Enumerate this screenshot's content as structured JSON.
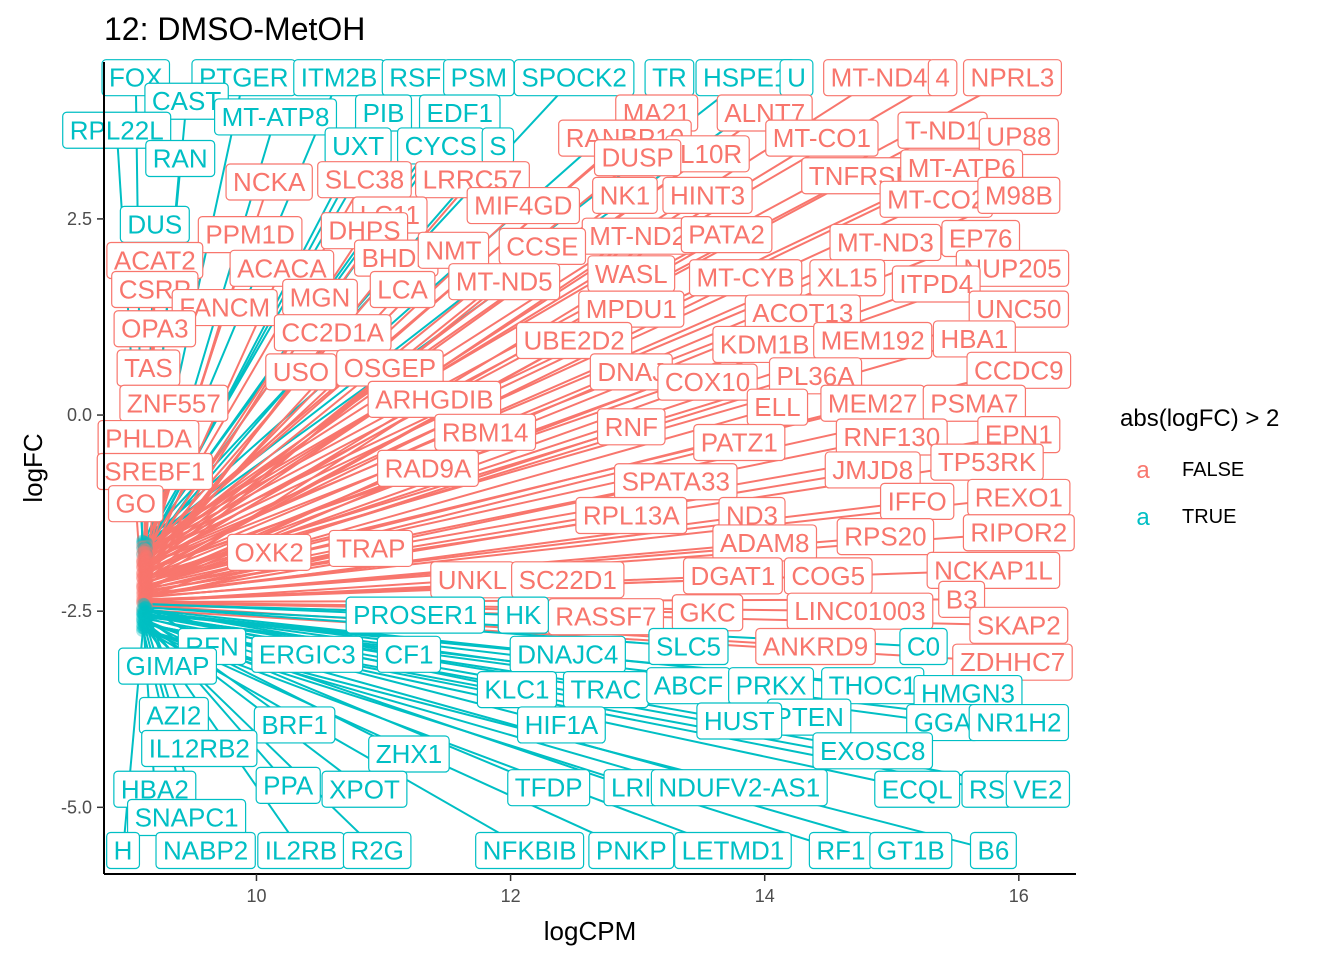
{
  "chart_data": {
    "type": "scatter",
    "title": "12: DMSO-MetOH",
    "xlabel": "logCPM",
    "ylabel": "logFC",
    "xlim": [
      8.8,
      16.45
    ],
    "ylim": [
      -5.85,
      4.5
    ],
    "xticks": [
      10,
      12,
      14,
      16
    ],
    "yticks": [
      -5.0,
      -2.5,
      0.0,
      2.5
    ],
    "ytick_labels": [
      "-5.0",
      "-2.5",
      "0.0",
      "2.5"
    ],
    "grid": false,
    "legend": {
      "title": "abs(logFC) > 2",
      "placement": "right",
      "entries": [
        {
          "key": "FALSE",
          "label": "FALSE",
          "glyph": "a",
          "color": "#F8766D"
        },
        {
          "key": "TRUE",
          "label": "TRUE",
          "glyph": "a",
          "color": "#00BFC4"
        }
      ]
    },
    "colors": {
      "FALSE": "#F8766D",
      "TRUE": "#00BFC4"
    },
    "anchor_cluster": {
      "x": 9.1,
      "y_min": -2.75,
      "y_max": -1.6
    },
    "labels": [
      {
        "t": "FOX",
        "x": 9.05,
        "y": 4.3,
        "c": "TRUE"
      },
      {
        "t": "PTGER",
        "x": 9.9,
        "y": 4.3,
        "c": "TRUE"
      },
      {
        "t": "ITM2B",
        "x": 10.65,
        "y": 4.3,
        "c": "TRUE"
      },
      {
        "t": "RSF",
        "x": 11.25,
        "y": 4.3,
        "c": "TRUE"
      },
      {
        "t": "PSM",
        "x": 11.75,
        "y": 4.3,
        "c": "TRUE"
      },
      {
        "t": "SPOCK2",
        "x": 12.5,
        "y": 4.3,
        "c": "TRUE"
      },
      {
        "t": "TR",
        "x": 13.25,
        "y": 4.3,
        "c": "TRUE"
      },
      {
        "t": "HSPE1",
        "x": 13.85,
        "y": 4.3,
        "c": "TRUE"
      },
      {
        "t": "U",
        "x": 14.25,
        "y": 4.3,
        "c": "TRUE"
      },
      {
        "t": "MT-ND4",
        "x": 14.9,
        "y": 4.3,
        "c": "FALSE"
      },
      {
        "t": "4",
        "x": 15.4,
        "y": 4.3,
        "c": "FALSE"
      },
      {
        "t": "NPRL3",
        "x": 15.95,
        "y": 4.3,
        "c": "FALSE"
      },
      {
        "t": "CAST",
        "x": 9.45,
        "y": 4.0,
        "c": "TRUE"
      },
      {
        "t": "MT-ATP8",
        "x": 10.15,
        "y": 3.8,
        "c": "TRUE"
      },
      {
        "t": "PIB",
        "x": 11.0,
        "y": 3.85,
        "c": "TRUE"
      },
      {
        "t": "EDF1",
        "x": 11.6,
        "y": 3.85,
        "c": "TRUE"
      },
      {
        "t": "RPL22L",
        "x": 8.9,
        "y": 3.63,
        "c": "TRUE"
      },
      {
        "t": "RAN",
        "x": 9.4,
        "y": 3.27,
        "c": "TRUE"
      },
      {
        "t": "UXT",
        "x": 10.8,
        "y": 3.43,
        "c": "TRUE"
      },
      {
        "t": "CYCS",
        "x": 11.45,
        "y": 3.43,
        "c": "TRUE"
      },
      {
        "t": "S",
        "x": 11.9,
        "y": 3.43,
        "c": "TRUE"
      },
      {
        "t": "DUS",
        "x": 9.2,
        "y": 2.43,
        "c": "TRUE"
      },
      {
        "t": "MA21",
        "x": 13.15,
        "y": 3.85,
        "c": "FALSE"
      },
      {
        "t": "ALNT7",
        "x": 14.0,
        "y": 3.85,
        "c": "FALSE"
      },
      {
        "t": "RANBP10",
        "x": 12.9,
        "y": 3.53,
        "c": "FALSE"
      },
      {
        "t": "MT-CO1",
        "x": 14.45,
        "y": 3.53,
        "c": "FALSE"
      },
      {
        "t": "T-ND1",
        "x": 15.4,
        "y": 3.63,
        "c": "FALSE"
      },
      {
        "t": "UP88",
        "x": 16.0,
        "y": 3.55,
        "c": "FALSE"
      },
      {
        "t": "IL10R",
        "x": 13.55,
        "y": 3.33,
        "c": "FALSE"
      },
      {
        "t": "DUSP",
        "x": 13.0,
        "y": 3.28,
        "c": "FALSE"
      },
      {
        "t": "NCKA",
        "x": 10.1,
        "y": 2.97,
        "c": "FALSE"
      },
      {
        "t": "SLC38",
        "x": 10.85,
        "y": 3.0,
        "c": "FALSE"
      },
      {
        "t": "LRRC57",
        "x": 11.7,
        "y": 3.0,
        "c": "FALSE"
      },
      {
        "t": "TNFRSF",
        "x": 14.75,
        "y": 3.05,
        "c": "FALSE"
      },
      {
        "t": "MT-ATP6",
        "x": 15.55,
        "y": 3.15,
        "c": "FALSE"
      },
      {
        "t": "MIF4GD",
        "x": 12.1,
        "y": 2.67,
        "c": "FALSE"
      },
      {
        "t": "NK1",
        "x": 12.9,
        "y": 2.8,
        "c": "FALSE"
      },
      {
        "t": "HINT3",
        "x": 13.55,
        "y": 2.8,
        "c": "FALSE"
      },
      {
        "t": "MT-CO2",
        "x": 15.35,
        "y": 2.75,
        "c": "FALSE"
      },
      {
        "t": "M98B",
        "x": 16.0,
        "y": 2.8,
        "c": "FALSE"
      },
      {
        "t": "LC11",
        "x": 11.05,
        "y": 2.55,
        "c": "FALSE"
      },
      {
        "t": "PPM1D",
        "x": 9.95,
        "y": 2.3,
        "c": "FALSE"
      },
      {
        "t": "DHPS",
        "x": 10.85,
        "y": 2.35,
        "c": "FALSE"
      },
      {
        "t": "MT-ND2",
        "x": 13.0,
        "y": 2.28,
        "c": "FALSE"
      },
      {
        "t": "PATA2",
        "x": 13.7,
        "y": 2.3,
        "c": "FALSE"
      },
      {
        "t": "MT-ND3",
        "x": 14.95,
        "y": 2.2,
        "c": "FALSE"
      },
      {
        "t": "EP76",
        "x": 15.7,
        "y": 2.25,
        "c": "FALSE"
      },
      {
        "t": "ACAT2",
        "x": 9.2,
        "y": 1.97,
        "c": "FALSE"
      },
      {
        "t": "ACACA",
        "x": 10.2,
        "y": 1.87,
        "c": "FALSE"
      },
      {
        "t": "BHD2",
        "x": 11.1,
        "y": 2.0,
        "c": "FALSE"
      },
      {
        "t": "NMT",
        "x": 11.55,
        "y": 2.1,
        "c": "FALSE"
      },
      {
        "t": "CCSE",
        "x": 12.25,
        "y": 2.15,
        "c": "FALSE"
      },
      {
        "t": "NUP205",
        "x": 15.95,
        "y": 1.87,
        "c": "FALSE"
      },
      {
        "t": "CSRP",
        "x": 9.2,
        "y": 1.6,
        "c": "FALSE"
      },
      {
        "t": "MGN",
        "x": 10.5,
        "y": 1.5,
        "c": "FALSE"
      },
      {
        "t": "LCA",
        "x": 11.15,
        "y": 1.6,
        "c": "FALSE"
      },
      {
        "t": "MT-ND5",
        "x": 11.95,
        "y": 1.7,
        "c": "FALSE"
      },
      {
        "t": "WASL",
        "x": 12.95,
        "y": 1.8,
        "c": "FALSE"
      },
      {
        "t": "MT-CYB",
        "x": 13.85,
        "y": 1.75,
        "c": "FALSE"
      },
      {
        "t": "XL15",
        "x": 14.65,
        "y": 1.75,
        "c": "FALSE"
      },
      {
        "t": "ITPD4",
        "x": 15.35,
        "y": 1.67,
        "c": "FALSE"
      },
      {
        "t": "FANCM",
        "x": 9.75,
        "y": 1.37,
        "c": "FALSE"
      },
      {
        "t": "MPDU1",
        "x": 12.95,
        "y": 1.35,
        "c": "FALSE"
      },
      {
        "t": "ACOT13",
        "x": 14.3,
        "y": 1.3,
        "c": "FALSE"
      },
      {
        "t": "UNC50",
        "x": 16.0,
        "y": 1.35,
        "c": "FALSE"
      },
      {
        "t": "OPA3",
        "x": 9.2,
        "y": 1.1,
        "c": "FALSE"
      },
      {
        "t": "CC2D1A",
        "x": 10.6,
        "y": 1.05,
        "c": "FALSE"
      },
      {
        "t": "UBE2D2",
        "x": 12.5,
        "y": 0.95,
        "c": "FALSE"
      },
      {
        "t": "KDM1B",
        "x": 14.0,
        "y": 0.9,
        "c": "FALSE"
      },
      {
        "t": "MEM192",
        "x": 14.85,
        "y": 0.95,
        "c": "FALSE"
      },
      {
        "t": "HBA1",
        "x": 15.65,
        "y": 0.97,
        "c": "FALSE"
      },
      {
        "t": "TAS",
        "x": 9.15,
        "y": 0.6,
        "c": "FALSE"
      },
      {
        "t": "USO",
        "x": 10.35,
        "y": 0.55,
        "c": "FALSE"
      },
      {
        "t": "OSGEP",
        "x": 11.05,
        "y": 0.6,
        "c": "FALSE"
      },
      {
        "t": "DNAJ",
        "x": 12.95,
        "y": 0.55,
        "c": "FALSE"
      },
      {
        "t": "COX10",
        "x": 13.55,
        "y": 0.42,
        "c": "FALSE"
      },
      {
        "t": "PL36A",
        "x": 14.4,
        "y": 0.5,
        "c": "FALSE"
      },
      {
        "t": "CCDC9",
        "x": 16.0,
        "y": 0.57,
        "c": "FALSE"
      },
      {
        "t": "ZNF557",
        "x": 9.35,
        "y": 0.15,
        "c": "FALSE"
      },
      {
        "t": "ARHGDIB",
        "x": 11.4,
        "y": 0.2,
        "c": "FALSE"
      },
      {
        "t": "ELL",
        "x": 14.1,
        "y": 0.1,
        "c": "FALSE"
      },
      {
        "t": "MEM27",
        "x": 14.85,
        "y": 0.15,
        "c": "FALSE"
      },
      {
        "t": "PSMA7",
        "x": 15.65,
        "y": 0.15,
        "c": "FALSE"
      },
      {
        "t": "PHLDA",
        "x": 9.15,
        "y": -0.3,
        "c": "FALSE"
      },
      {
        "t": "RBM14",
        "x": 11.8,
        "y": -0.22,
        "c": "FALSE"
      },
      {
        "t": "RNF",
        "x": 12.95,
        "y": -0.15,
        "c": "FALSE"
      },
      {
        "t": "PATZ1",
        "x": 13.8,
        "y": -0.35,
        "c": "FALSE"
      },
      {
        "t": "RNF130",
        "x": 15.0,
        "y": -0.28,
        "c": "FALSE"
      },
      {
        "t": "EPN1",
        "x": 16.0,
        "y": -0.25,
        "c": "FALSE"
      },
      {
        "t": "SREBF1",
        "x": 9.2,
        "y": -0.72,
        "c": "FALSE"
      },
      {
        "t": "RAD9A",
        "x": 11.35,
        "y": -0.68,
        "c": "FALSE"
      },
      {
        "t": "JMJD8",
        "x": 14.85,
        "y": -0.7,
        "c": "FALSE"
      },
      {
        "t": "TP53RK",
        "x": 15.75,
        "y": -0.6,
        "c": "FALSE"
      },
      {
        "t": "SPATA33",
        "x": 13.3,
        "y": -0.85,
        "c": "FALSE"
      },
      {
        "t": "REXO1",
        "x": 16.0,
        "y": -1.05,
        "c": "FALSE"
      },
      {
        "t": "GO",
        "x": 9.05,
        "y": -1.13,
        "c": "FALSE"
      },
      {
        "t": "IFFO",
        "x": 15.2,
        "y": -1.1,
        "c": "FALSE"
      },
      {
        "t": "RPL13A",
        "x": 12.95,
        "y": -1.28,
        "c": "FALSE"
      },
      {
        "t": "ND3",
        "x": 13.9,
        "y": -1.28,
        "c": "FALSE"
      },
      {
        "t": "RIPOR2",
        "x": 16.0,
        "y": -1.5,
        "c": "FALSE"
      },
      {
        "t": "OXK2",
        "x": 10.1,
        "y": -1.75,
        "c": "FALSE"
      },
      {
        "t": "TRAP",
        "x": 10.9,
        "y": -1.7,
        "c": "FALSE"
      },
      {
        "t": "ADAM8",
        "x": 14.0,
        "y": -1.63,
        "c": "FALSE"
      },
      {
        "t": "RPS20",
        "x": 14.95,
        "y": -1.55,
        "c": "FALSE"
      },
      {
        "t": "UNKL",
        "x": 11.7,
        "y": -2.1,
        "c": "FALSE"
      },
      {
        "t": "SC22D1",
        "x": 12.45,
        "y": -2.1,
        "c": "FALSE"
      },
      {
        "t": "DGAT1",
        "x": 13.75,
        "y": -2.05,
        "c": "FALSE"
      },
      {
        "t": "COG5",
        "x": 14.5,
        "y": -2.05,
        "c": "FALSE"
      },
      {
        "t": "NCKAP1L",
        "x": 15.8,
        "y": -1.98,
        "c": "FALSE"
      },
      {
        "t": "RASSF7",
        "x": 12.75,
        "y": -2.57,
        "c": "FALSE"
      },
      {
        "t": "GKC",
        "x": 13.55,
        "y": -2.52,
        "c": "FALSE"
      },
      {
        "t": "LINC01003",
        "x": 14.75,
        "y": -2.5,
        "c": "FALSE"
      },
      {
        "t": "B3",
        "x": 15.55,
        "y": -2.35,
        "c": "FALSE"
      },
      {
        "t": "SKAP2",
        "x": 16.0,
        "y": -2.68,
        "c": "FALSE"
      },
      {
        "t": "ANKRD9",
        "x": 14.4,
        "y": -2.95,
        "c": "FALSE"
      },
      {
        "t": "ZDHHC7",
        "x": 15.95,
        "y": -3.15,
        "c": "FALSE"
      },
      {
        "t": "PROSER1",
        "x": 11.25,
        "y": -2.55,
        "c": "TRUE"
      },
      {
        "t": "HK",
        "x": 12.1,
        "y": -2.55,
        "c": "TRUE"
      },
      {
        "t": "RFN",
        "x": 9.65,
        "y": -2.95,
        "c": "TRUE"
      },
      {
        "t": "ERGIC3",
        "x": 10.4,
        "y": -3.05,
        "c": "TRUE"
      },
      {
        "t": "CF1",
        "x": 11.2,
        "y": -3.05,
        "c": "TRUE"
      },
      {
        "t": "DNAJC4",
        "x": 12.45,
        "y": -3.05,
        "c": "TRUE"
      },
      {
        "t": "SLC5",
        "x": 13.4,
        "y": -2.95,
        "c": "TRUE"
      },
      {
        "t": "C0",
        "x": 15.25,
        "y": -2.95,
        "c": "TRUE"
      },
      {
        "t": "GIMAP",
        "x": 9.3,
        "y": -3.2,
        "c": "TRUE"
      },
      {
        "t": "KLC1",
        "x": 12.05,
        "y": -3.5,
        "c": "TRUE"
      },
      {
        "t": "TRAC",
        "x": 12.75,
        "y": -3.5,
        "c": "TRUE"
      },
      {
        "t": "ABCF",
        "x": 13.4,
        "y": -3.45,
        "c": "TRUE"
      },
      {
        "t": "PRKX",
        "x": 14.05,
        "y": -3.45,
        "c": "TRUE"
      },
      {
        "t": "THOC1",
        "x": 14.85,
        "y": -3.45,
        "c": "TRUE"
      },
      {
        "t": "HMGN3",
        "x": 15.6,
        "y": -3.55,
        "c": "TRUE"
      },
      {
        "t": "AZI2",
        "x": 9.35,
        "y": -3.83,
        "c": "TRUE"
      },
      {
        "t": "BRF1",
        "x": 10.3,
        "y": -3.95,
        "c": "TRUE"
      },
      {
        "t": "HIF1A",
        "x": 12.4,
        "y": -3.95,
        "c": "TRUE"
      },
      {
        "t": "GGA",
        "x": 15.4,
        "y": -3.92,
        "c": "TRUE"
      },
      {
        "t": "NR1H2",
        "x": 16.0,
        "y": -3.92,
        "c": "TRUE"
      },
      {
        "t": "PTEN",
        "x": 14.35,
        "y": -3.85,
        "c": "TRUE"
      },
      {
        "t": "HUST",
        "x": 13.8,
        "y": -3.9,
        "c": "TRUE"
      },
      {
        "t": "EXOSC8",
        "x": 14.85,
        "y": -4.28,
        "c": "TRUE"
      },
      {
        "t": "IL12RB2",
        "x": 9.55,
        "y": -4.25,
        "c": "TRUE"
      },
      {
        "t": "ZHX1",
        "x": 11.2,
        "y": -4.32,
        "c": "TRUE"
      },
      {
        "t": "HBA2",
        "x": 9.2,
        "y": -4.77,
        "c": "TRUE"
      },
      {
        "t": "PPA",
        "x": 10.25,
        "y": -4.72,
        "c": "TRUE"
      },
      {
        "t": "XPOT",
        "x": 10.85,
        "y": -4.77,
        "c": "TRUE"
      },
      {
        "t": "TFDP",
        "x": 12.3,
        "y": -4.75,
        "c": "TRUE"
      },
      {
        "t": "LRI",
        "x": 12.95,
        "y": -4.75,
        "c": "TRUE"
      },
      {
        "t": "NDUFV2-AS1",
        "x": 13.8,
        "y": -4.75,
        "c": "TRUE"
      },
      {
        "t": "ECQL",
        "x": 15.2,
        "y": -4.77,
        "c": "TRUE"
      },
      {
        "t": "RS",
        "x": 15.75,
        "y": -4.77,
        "c": "TRUE"
      },
      {
        "t": "VE2",
        "x": 16.15,
        "y": -4.77,
        "c": "TRUE"
      },
      {
        "t": "SNAPC1",
        "x": 9.45,
        "y": -5.13,
        "c": "TRUE"
      },
      {
        "t": "H",
        "x": 8.95,
        "y": -5.55,
        "c": "TRUE"
      },
      {
        "t": "NABP2",
        "x": 9.6,
        "y": -5.55,
        "c": "TRUE"
      },
      {
        "t": "IL2RB",
        "x": 10.35,
        "y": -5.55,
        "c": "TRUE"
      },
      {
        "t": "R2G",
        "x": 10.95,
        "y": -5.55,
        "c": "TRUE"
      },
      {
        "t": "NFKBIB",
        "x": 12.15,
        "y": -5.55,
        "c": "TRUE"
      },
      {
        "t": "PNKP",
        "x": 12.95,
        "y": -5.55,
        "c": "TRUE"
      },
      {
        "t": "LETMD1",
        "x": 13.75,
        "y": -5.55,
        "c": "TRUE"
      },
      {
        "t": "RF1",
        "x": 14.6,
        "y": -5.55,
        "c": "TRUE"
      },
      {
        "t": "GT1B",
        "x": 15.15,
        "y": -5.55,
        "c": "TRUE"
      },
      {
        "t": "B6",
        "x": 15.8,
        "y": -5.55,
        "c": "TRUE"
      }
    ]
  }
}
